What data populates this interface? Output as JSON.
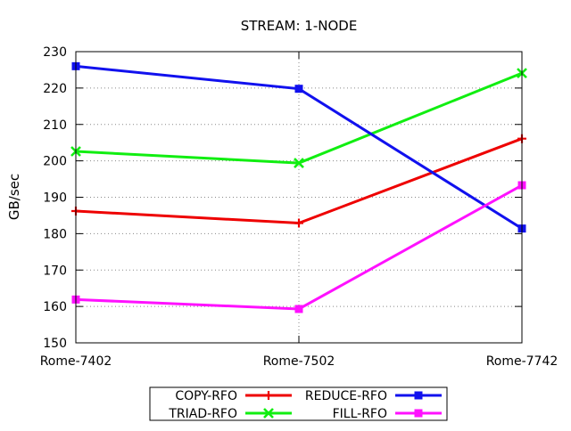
{
  "chart_data": {
    "type": "line",
    "title": "STREAM: 1-NODE",
    "xlabel": "",
    "ylabel": "GB/sec",
    "categories": [
      "Rome-7402",
      "Rome-7502",
      "Rome-7742"
    ],
    "ylim": [
      150,
      230
    ],
    "yticks": [
      150,
      160,
      170,
      180,
      190,
      200,
      210,
      220,
      230
    ],
    "grid": true,
    "legend_position": "bottom-center",
    "series": [
      {
        "name": "COPY-RFO",
        "color": "#ee0000",
        "marker": "plus",
        "values": [
          186.2,
          182.9,
          206.1
        ]
      },
      {
        "name": "TRIAD-RFO",
        "color": "#11ee11",
        "marker": "cross",
        "values": [
          202.6,
          199.4,
          224.1
        ]
      },
      {
        "name": "REDUCE-RFO",
        "color": "#1111ee",
        "marker": "square",
        "values": [
          226.0,
          219.8,
          181.4
        ]
      },
      {
        "name": "FILL-RFO",
        "color": "#ff11ff",
        "marker": "square",
        "values": [
          161.9,
          159.3,
          193.3
        ]
      }
    ]
  }
}
